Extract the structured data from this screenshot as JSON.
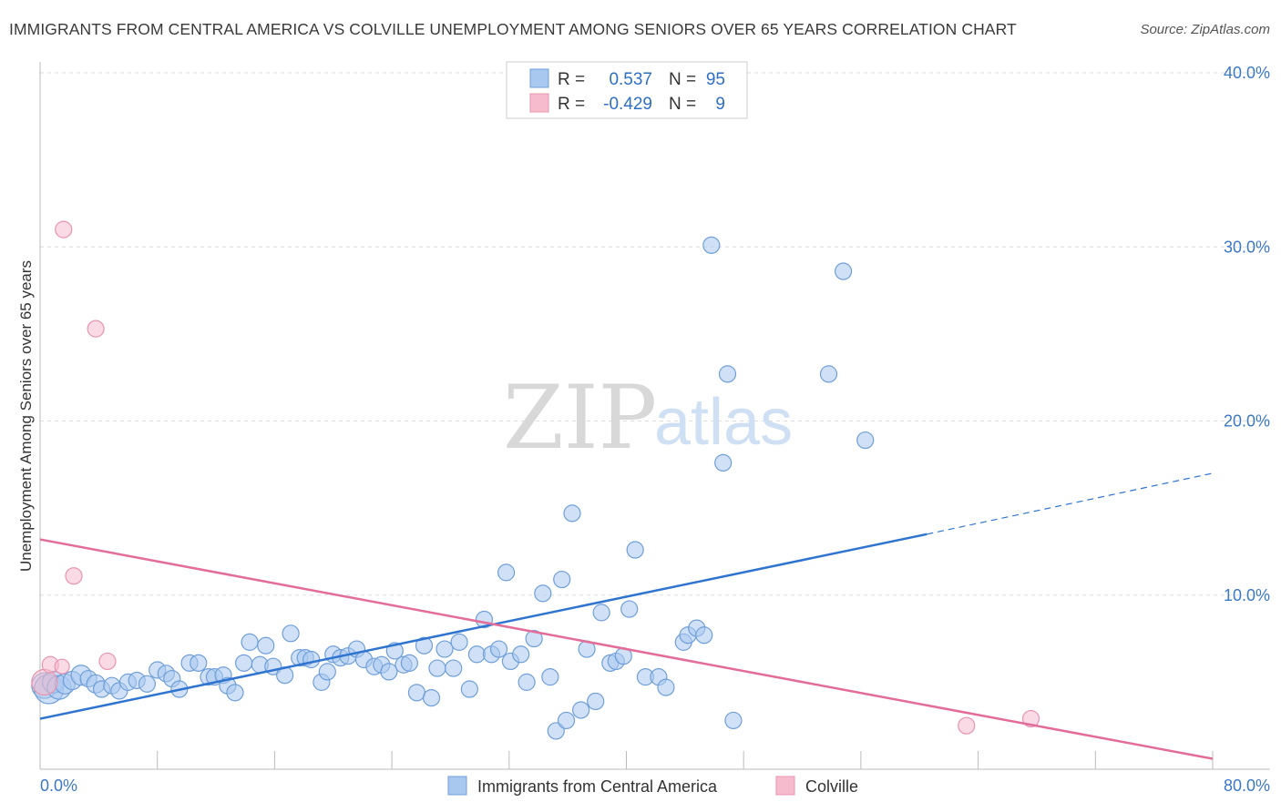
{
  "title": "IMMIGRANTS FROM CENTRAL AMERICA VS COLVILLE UNEMPLOYMENT AMONG SENIORS OVER 65 YEARS CORRELATION CHART",
  "source": "Source: ZipAtlas.com",
  "watermark": {
    "zip": "ZIP",
    "atlas": "atlas"
  },
  "colors": {
    "blue_fill": "#a9c8f0",
    "blue_stroke": "#6f9fd8",
    "blue_line": "#2f74d0",
    "pink_fill": "#f6bccd",
    "pink_stroke": "#e894ae",
    "pink_line": "#e36c98",
    "grid": "#dddddd",
    "tick_label": "#3b78c8"
  },
  "legend": {
    "rows": [
      {
        "r_label": "R =",
        "r_value": "0.537",
        "n_label": "N =",
        "n_value": "95"
      },
      {
        "r_label": "R =",
        "r_value": "-0.429",
        "n_label": "N =",
        "n_value": "9"
      }
    ]
  },
  "bottom_legend": {
    "items": [
      "Immigrants from Central America",
      "Colville"
    ]
  },
  "chart_data": {
    "type": "scatter",
    "xlabel": "",
    "ylabel": "Unemployment Among Seniors over 65 years",
    "xlim": [
      0,
      80
    ],
    "ylim": [
      0,
      40
    ],
    "x_tick_labels": [
      "0.0%",
      "80.0%"
    ],
    "y_tick_labels": [
      "10.0%",
      "20.0%",
      "30.0%",
      "40.0%"
    ],
    "y_ticks": [
      10,
      20,
      30,
      40
    ],
    "grid": true,
    "legend_placement": "top-center",
    "series": [
      {
        "name": "Immigrants from Central America",
        "color": "#a9c8f0",
        "trend": {
          "x": [
            0,
            60.5
          ],
          "y": [
            2.9,
            13.5
          ],
          "dashed_extension": {
            "x": [
              60.5,
              80
            ],
            "y": [
              13.5,
              17.0
            ]
          }
        },
        "points": [
          [
            0.3,
            4.8,
            14
          ],
          [
            0.6,
            4.6,
            16
          ],
          [
            0.9,
            5.0,
            12
          ],
          [
            1.3,
            4.7,
            13
          ],
          [
            1.7,
            4.9,
            11
          ],
          [
            2.2,
            5.1,
            10
          ],
          [
            2.8,
            5.4,
            11
          ],
          [
            3.3,
            5.2,
            9
          ],
          [
            3.8,
            4.9,
            10
          ],
          [
            4.2,
            4.6,
            9
          ],
          [
            4.9,
            4.8,
            9
          ],
          [
            5.4,
            4.5,
            9
          ],
          [
            6.0,
            5.0,
            9
          ],
          [
            6.6,
            5.1,
            9
          ],
          [
            7.3,
            4.9,
            9
          ],
          [
            8.0,
            5.7,
            9
          ],
          [
            8.6,
            5.5,
            9
          ],
          [
            9.0,
            5.2,
            9
          ],
          [
            9.5,
            4.6,
            9
          ],
          [
            10.2,
            6.1,
            9
          ],
          [
            10.8,
            6.1,
            9
          ],
          [
            11.5,
            5.3,
            9
          ],
          [
            11.9,
            5.3,
            9
          ],
          [
            12.5,
            5.4,
            9
          ],
          [
            12.8,
            4.8,
            9
          ],
          [
            13.3,
            4.4,
            9
          ],
          [
            13.9,
            6.1,
            9
          ],
          [
            14.3,
            7.3,
            9
          ],
          [
            15.0,
            6.0,
            9
          ],
          [
            15.4,
            7.1,
            9
          ],
          [
            15.9,
            5.9,
            9
          ],
          [
            16.7,
            5.4,
            9
          ],
          [
            17.1,
            7.8,
            9
          ],
          [
            17.7,
            6.4,
            9
          ],
          [
            18.1,
            6.4,
            9
          ],
          [
            18.5,
            6.3,
            9
          ],
          [
            19.2,
            5.0,
            9
          ],
          [
            19.6,
            5.6,
            9
          ],
          [
            20.0,
            6.6,
            9
          ],
          [
            20.5,
            6.4,
            9
          ],
          [
            21.0,
            6.5,
            9
          ],
          [
            21.6,
            6.9,
            9
          ],
          [
            22.1,
            6.3,
            9
          ],
          [
            22.8,
            5.9,
            9
          ],
          [
            23.3,
            6.0,
            9
          ],
          [
            23.8,
            5.6,
            9
          ],
          [
            24.2,
            6.8,
            9
          ],
          [
            24.8,
            6.0,
            9
          ],
          [
            25.2,
            6.1,
            9
          ],
          [
            25.7,
            4.4,
            9
          ],
          [
            26.2,
            7.1,
            9
          ],
          [
            26.7,
            4.1,
            9
          ],
          [
            27.1,
            5.8,
            9
          ],
          [
            27.6,
            6.9,
            9
          ],
          [
            28.2,
            5.8,
            9
          ],
          [
            28.6,
            7.3,
            9
          ],
          [
            29.3,
            4.6,
            9
          ],
          [
            29.8,
            6.6,
            9
          ],
          [
            30.3,
            8.6,
            9
          ],
          [
            30.8,
            6.6,
            9
          ],
          [
            31.3,
            6.9,
            9
          ],
          [
            31.8,
            11.3,
            9
          ],
          [
            32.1,
            6.2,
            9
          ],
          [
            32.8,
            6.6,
            9
          ],
          [
            33.2,
            5.0,
            9
          ],
          [
            33.7,
            7.5,
            9
          ],
          [
            34.3,
            10.1,
            9
          ],
          [
            34.8,
            5.3,
            9
          ],
          [
            35.2,
            2.2,
            9
          ],
          [
            35.6,
            10.9,
            9
          ],
          [
            35.9,
            2.8,
            9
          ],
          [
            36.3,
            14.7,
            9
          ],
          [
            36.9,
            3.4,
            9
          ],
          [
            37.3,
            6.9,
            9
          ],
          [
            37.9,
            3.9,
            9
          ],
          [
            38.3,
            9.0,
            9
          ],
          [
            38.9,
            6.1,
            9
          ],
          [
            39.3,
            6.2,
            9
          ],
          [
            39.8,
            6.5,
            9
          ],
          [
            40.2,
            9.2,
            9
          ],
          [
            40.6,
            12.6,
            9
          ],
          [
            41.3,
            5.3,
            9
          ],
          [
            42.2,
            5.3,
            9
          ],
          [
            42.7,
            4.7,
            9
          ],
          [
            43.9,
            7.3,
            9
          ],
          [
            44.2,
            7.7,
            9
          ],
          [
            44.8,
            8.1,
            9
          ],
          [
            45.3,
            7.7,
            9
          ],
          [
            45.8,
            30.1,
            9
          ],
          [
            46.6,
            17.6,
            9
          ],
          [
            46.9,
            22.7,
            9
          ],
          [
            47.3,
            2.8,
            9
          ],
          [
            53.8,
            22.7,
            9
          ],
          [
            54.8,
            28.6,
            9
          ],
          [
            56.3,
            18.9,
            9
          ]
        ]
      },
      {
        "name": "Colville",
        "color": "#f6bccd",
        "trend": {
          "x": [
            0,
            80
          ],
          "y": [
            13.2,
            0.6
          ]
        },
        "points": [
          [
            0.3,
            5.0,
            14
          ],
          [
            0.7,
            6.0,
            9
          ],
          [
            1.5,
            5.9,
            8
          ],
          [
            1.6,
            31.0,
            9
          ],
          [
            2.3,
            11.1,
            9
          ],
          [
            3.8,
            25.3,
            9
          ],
          [
            4.6,
            6.2,
            9
          ],
          [
            63.2,
            2.5,
            9
          ],
          [
            67.6,
            2.9,
            9
          ]
        ]
      }
    ]
  }
}
